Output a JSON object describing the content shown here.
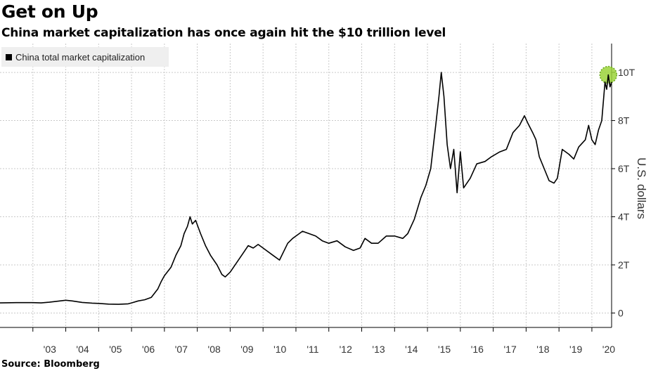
{
  "header": {
    "title": "Get on Up",
    "subtitle": "China market capitalization has once again hit the $10 trillion level"
  },
  "footer": {
    "source": "Source: Bloomberg"
  },
  "chart_data": {
    "type": "line",
    "ylabel": "U.S. dollars",
    "ylim": [
      -0.6,
      11.2
    ],
    "xlim": [
      2002.0,
      2020.6
    ],
    "y_ticks": [
      {
        "value": 0,
        "label": "0"
      },
      {
        "value": 2,
        "label": "2T"
      },
      {
        "value": 4,
        "label": "4T"
      },
      {
        "value": 6,
        "label": "6T"
      },
      {
        "value": 8,
        "label": "8T"
      },
      {
        "value": 10,
        "label": "10T"
      }
    ],
    "x_ticks": [
      {
        "value": 2003,
        "label": "'03"
      },
      {
        "value": 2004,
        "label": "'04"
      },
      {
        "value": 2005,
        "label": "'05"
      },
      {
        "value": 2006,
        "label": "'06"
      },
      {
        "value": 2007,
        "label": "'07"
      },
      {
        "value": 2008,
        "label": "'08"
      },
      {
        "value": 2009,
        "label": "'09"
      },
      {
        "value": 2010,
        "label": "'10"
      },
      {
        "value": 2011,
        "label": "'11"
      },
      {
        "value": 2012,
        "label": "'12"
      },
      {
        "value": 2013,
        "label": "'13"
      },
      {
        "value": 2014,
        "label": "'14"
      },
      {
        "value": 2015,
        "label": "'15"
      },
      {
        "value": 2016,
        "label": "'16"
      },
      {
        "value": 2017,
        "label": "'17"
      },
      {
        "value": 2018,
        "label": "'18"
      },
      {
        "value": 2019,
        "label": "'19"
      },
      {
        "value": 2020,
        "label": "'20"
      }
    ],
    "grid": true,
    "legend_position": "top-left",
    "series": [
      {
        "name": "China total market capitalization",
        "color": "#000000",
        "points": [
          [
            2002.0,
            0.42
          ],
          [
            2002.5,
            0.43
          ],
          [
            2003.0,
            0.43
          ],
          [
            2003.25,
            0.42
          ],
          [
            2003.5,
            0.45
          ],
          [
            2003.75,
            0.49
          ],
          [
            2004.0,
            0.53
          ],
          [
            2004.2,
            0.5
          ],
          [
            2004.5,
            0.44
          ],
          [
            2004.8,
            0.41
          ],
          [
            2005.0,
            0.4
          ],
          [
            2005.3,
            0.37
          ],
          [
            2005.6,
            0.36
          ],
          [
            2005.9,
            0.38
          ],
          [
            2006.0,
            0.42
          ],
          [
            2006.2,
            0.5
          ],
          [
            2006.4,
            0.55
          ],
          [
            2006.6,
            0.65
          ],
          [
            2006.8,
            1.0
          ],
          [
            2006.9,
            1.3
          ],
          [
            2007.0,
            1.55
          ],
          [
            2007.2,
            1.9
          ],
          [
            2007.35,
            2.4
          ],
          [
            2007.5,
            2.8
          ],
          [
            2007.6,
            3.3
          ],
          [
            2007.7,
            3.6
          ],
          [
            2007.78,
            4.0
          ],
          [
            2007.85,
            3.7
          ],
          [
            2007.95,
            3.85
          ],
          [
            2008.1,
            3.3
          ],
          [
            2008.25,
            2.8
          ],
          [
            2008.4,
            2.4
          ],
          [
            2008.6,
            2.0
          ],
          [
            2008.75,
            1.6
          ],
          [
            2008.85,
            1.5
          ],
          [
            2009.0,
            1.7
          ],
          [
            2009.2,
            2.1
          ],
          [
            2009.4,
            2.5
          ],
          [
            2009.55,
            2.8
          ],
          [
            2009.7,
            2.7
          ],
          [
            2009.85,
            2.85
          ],
          [
            2010.0,
            2.7
          ],
          [
            2010.3,
            2.4
          ],
          [
            2010.5,
            2.2
          ],
          [
            2010.75,
            2.9
          ],
          [
            2010.9,
            3.1
          ],
          [
            2011.0,
            3.2
          ],
          [
            2011.2,
            3.4
          ],
          [
            2011.4,
            3.3
          ],
          [
            2011.6,
            3.2
          ],
          [
            2011.8,
            3.0
          ],
          [
            2012.0,
            2.9
          ],
          [
            2012.25,
            3.0
          ],
          [
            2012.5,
            2.75
          ],
          [
            2012.75,
            2.6
          ],
          [
            2012.95,
            2.7
          ],
          [
            2013.1,
            3.1
          ],
          [
            2013.3,
            2.9
          ],
          [
            2013.5,
            2.9
          ],
          [
            2013.75,
            3.2
          ],
          [
            2014.0,
            3.2
          ],
          [
            2014.25,
            3.1
          ],
          [
            2014.4,
            3.3
          ],
          [
            2014.6,
            3.9
          ],
          [
            2014.8,
            4.8
          ],
          [
            2014.95,
            5.3
          ],
          [
            2015.1,
            6.0
          ],
          [
            2015.25,
            7.8
          ],
          [
            2015.35,
            9.0
          ],
          [
            2015.42,
            10.0
          ],
          [
            2015.5,
            9.0
          ],
          [
            2015.6,
            7.0
          ],
          [
            2015.7,
            6.0
          ],
          [
            2015.8,
            6.8
          ],
          [
            2015.9,
            5.0
          ],
          [
            2016.0,
            6.7
          ],
          [
            2016.1,
            5.2
          ],
          [
            2016.3,
            5.6
          ],
          [
            2016.5,
            6.2
          ],
          [
            2016.75,
            6.3
          ],
          [
            2016.95,
            6.5
          ],
          [
            2017.2,
            6.7
          ],
          [
            2017.4,
            6.8
          ],
          [
            2017.6,
            7.5
          ],
          [
            2017.8,
            7.8
          ],
          [
            2017.95,
            8.2
          ],
          [
            2018.05,
            7.9
          ],
          [
            2018.2,
            7.5
          ],
          [
            2018.3,
            7.2
          ],
          [
            2018.4,
            6.5
          ],
          [
            2018.55,
            6.0
          ],
          [
            2018.7,
            5.5
          ],
          [
            2018.85,
            5.4
          ],
          [
            2018.95,
            5.6
          ],
          [
            2019.1,
            6.8
          ],
          [
            2019.3,
            6.6
          ],
          [
            2019.45,
            6.4
          ],
          [
            2019.6,
            6.9
          ],
          [
            2019.8,
            7.2
          ],
          [
            2019.9,
            7.8
          ],
          [
            2020.0,
            7.2
          ],
          [
            2020.1,
            7.0
          ],
          [
            2020.2,
            7.6
          ],
          [
            2020.3,
            8.0
          ],
          [
            2020.4,
            9.6
          ],
          [
            2020.45,
            9.3
          ],
          [
            2020.5,
            9.9
          ],
          [
            2020.55,
            9.4
          ],
          [
            2020.6,
            9.6
          ]
        ]
      }
    ],
    "annotations": [
      {
        "type": "highlight-circle",
        "x": 2020.5,
        "y": 9.9,
        "color": "#9bd43a"
      }
    ]
  }
}
